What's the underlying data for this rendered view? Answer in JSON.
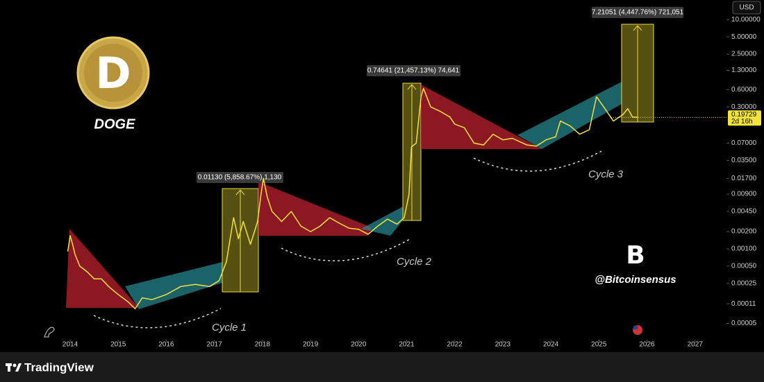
{
  "chart_data": {
    "type": "line",
    "currency": "USD",
    "symbol": "DOGE",
    "watermark": "@Bitcoinsensus",
    "brand": "TradingView",
    "cycle_labels": [
      "Cycle 1",
      "Cycle 2",
      "Cycle 3"
    ],
    "annotations": [
      "0.01130 (5,858.67%) 1,130",
      "0.74641 (21,457.13%) 74,641",
      "7.21051 (4,447.76%) 721,051"
    ],
    "last_price": 0.19729,
    "countdown": "2d 16h",
    "log_scale": true,
    "grid": false,
    "xlim": [
      2012.54,
      2027.64
    ],
    "xticks": [
      2014,
      2015,
      2016,
      2017,
      2018,
      2019,
      2020,
      2021,
      2022,
      2023,
      2024,
      2025,
      2026,
      2027
    ],
    "ylim": [
      2.6e-05,
      22
    ],
    "yticks": [
      {
        "value": 10,
        "label": "10.00000"
      },
      {
        "value": 5,
        "label": "5.00000"
      },
      {
        "value": 2.5,
        "label": "2.50000"
      },
      {
        "value": 1.3,
        "label": "1.30000"
      },
      {
        "value": 0.6,
        "label": "0.60000"
      },
      {
        "value": 0.3,
        "label": "0.30000"
      },
      {
        "value": 0.07,
        "label": "0.07000"
      },
      {
        "value": 0.035,
        "label": "0.03500"
      },
      {
        "value": 0.017,
        "label": "0.01700"
      },
      {
        "value": 0.009,
        "label": "0.00900"
      },
      {
        "value": 0.0045,
        "label": "0.00450"
      },
      {
        "value": 0.002,
        "label": "0.00200"
      },
      {
        "value": 0.001,
        "label": "0.00100"
      },
      {
        "value": 0.0005,
        "label": "0.00050"
      },
      {
        "value": 0.00025,
        "label": "0.00025"
      },
      {
        "value": 0.00011,
        "label": "0.00011"
      },
      {
        "value": 5e-05,
        "label": "0.00005"
      }
    ],
    "x": [
      2013.95,
      2014.0,
      2014.05,
      2014.1,
      2014.2,
      2014.35,
      2014.5,
      2014.65,
      2014.8,
      2015.0,
      2015.2,
      2015.35,
      2015.5,
      2015.7,
      2016.0,
      2016.3,
      2016.6,
      2016.9,
      2017.1,
      2017.25,
      2017.4,
      2017.5,
      2017.6,
      2017.75,
      2017.9,
      2017.97,
      2018.02,
      2018.1,
      2018.2,
      2018.4,
      2018.6,
      2018.8,
      2019.0,
      2019.2,
      2019.4,
      2019.6,
      2019.8,
      2020.0,
      2020.2,
      2020.4,
      2020.6,
      2020.8,
      2020.95,
      2021.05,
      2021.1,
      2021.2,
      2021.3,
      2021.35,
      2021.5,
      2021.7,
      2021.9,
      2022.0,
      2022.2,
      2022.4,
      2022.6,
      2022.8,
      2023.0,
      2023.2,
      2023.5,
      2023.7,
      2023.9,
      2024.1,
      2024.2,
      2024.4,
      2024.6,
      2024.8,
      2024.95,
      2025.1,
      2025.3,
      2025.5,
      2025.6,
      2025.7,
      2025.8
    ],
    "series": [
      {
        "name": "DOGE",
        "color": "#f2e33c",
        "values": [
          0.0009,
          0.0017,
          0.0012,
          0.0008,
          0.0005,
          0.0004,
          0.0003,
          0.0003,
          0.00022,
          0.00016,
          0.00012,
          9e-05,
          0.00014,
          0.00013,
          0.00016,
          0.00022,
          0.00024,
          0.00022,
          0.00028,
          0.0006,
          0.0035,
          0.0015,
          0.003,
          0.0012,
          0.003,
          0.009,
          0.017,
          0.008,
          0.0045,
          0.003,
          0.0045,
          0.0025,
          0.002,
          0.0025,
          0.0035,
          0.0028,
          0.0023,
          0.0022,
          0.0018,
          0.0025,
          0.0033,
          0.0027,
          0.0035,
          0.009,
          0.06,
          0.07,
          0.45,
          0.63,
          0.3,
          0.25,
          0.2,
          0.15,
          0.13,
          0.07,
          0.065,
          0.1,
          0.08,
          0.085,
          0.065,
          0.062,
          0.08,
          0.09,
          0.17,
          0.14,
          0.1,
          0.12,
          0.45,
          0.3,
          0.17,
          0.22,
          0.28,
          0.2,
          0.19729
        ]
      }
    ]
  }
}
